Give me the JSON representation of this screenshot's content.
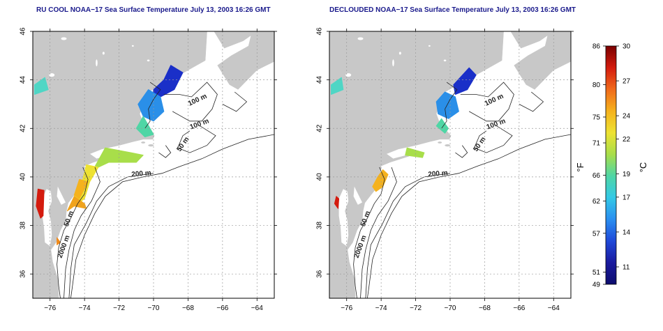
{
  "left_panel": {
    "title": "RU COOL NOAA−17 Sea Surface Temperature July 13, 2003 16:26 GMT",
    "contour_labels": [
      "100 m",
      "100 m",
      "50 m",
      "200 m",
      "50 m",
      "2000 m"
    ]
  },
  "right_panel": {
    "title": "DECLOUDED NOAA−17 Sea Surface Temperature July 13, 2003 16:26 GMT",
    "contour_labels": [
      "100 m",
      "100 m",
      "50 m",
      "200 m",
      "50 m",
      "2000 m"
    ]
  },
  "axes": {
    "lon_range": [
      -77,
      -63
    ],
    "lat_range": [
      35,
      46
    ],
    "x_ticks": [
      -76,
      -74,
      -72,
      -70,
      -68,
      -66,
      -64
    ],
    "y_ticks": [
      36,
      38,
      40,
      42,
      44,
      46
    ],
    "grid": true
  },
  "colorbar": {
    "unit_f": "°F",
    "unit_c": "°C",
    "f_ticks": [
      86,
      80,
      75,
      71,
      66,
      62,
      57,
      51,
      49
    ],
    "c_ticks": [
      30,
      27,
      24,
      22,
      19,
      17,
      14,
      11
    ],
    "range_c": [
      9.5,
      30
    ],
    "colors": [
      "#7a0000",
      "#d41b0e",
      "#f06a1a",
      "#f5b21d",
      "#eee232",
      "#a8de4a",
      "#4fd6a5",
      "#33c9e6",
      "#2a8ff0",
      "#1f49d9",
      "#1a1a9e",
      "#0d0d6e"
    ]
  }
}
